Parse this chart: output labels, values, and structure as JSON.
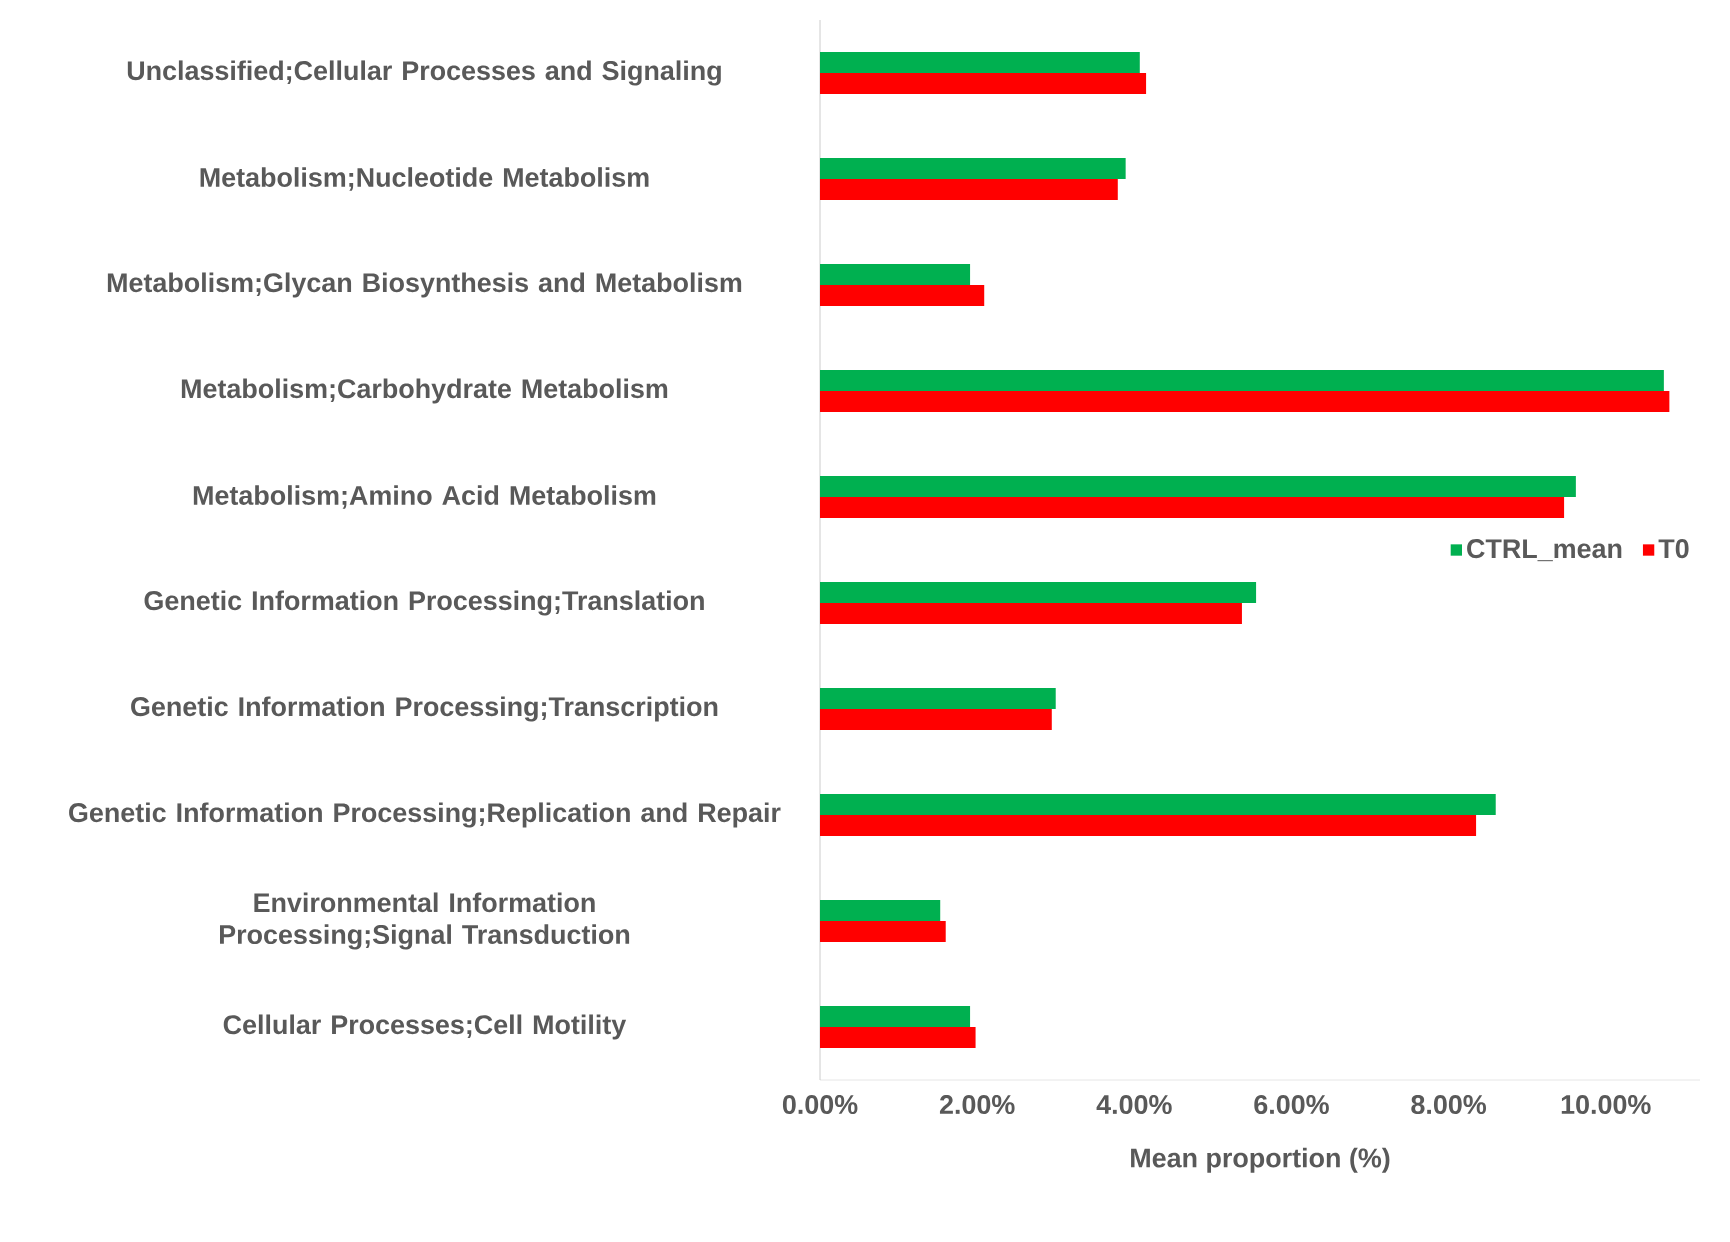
{
  "chart_data": {
    "type": "bar",
    "orientation": "horizontal",
    "xlabel": "Mean proportion (%)",
    "categories": [
      "Unclassified;Cellular Processes and Signaling",
      "Metabolism;Nucleotide Metabolism",
      "Metabolism;Glycan Biosynthesis and Metabolism",
      "Metabolism;Carbohydrate Metabolism",
      "Metabolism;Amino Acid Metabolism",
      "Genetic Information Processing;Translation",
      "Genetic Information Processing;Transcription",
      "Genetic Information Processing;Replication and Repair",
      "Environmental Information Processing;Signal Transduction",
      "Cellular Processes;Cell Motility"
    ],
    "series": [
      {
        "name": "CTRL_mean",
        "color": "#00b050",
        "values": [
          4.07,
          3.89,
          1.91,
          10.74,
          9.62,
          5.55,
          3.0,
          8.6,
          1.53,
          1.91
        ]
      },
      {
        "name": "T0",
        "color": "#ff0000",
        "values": [
          4.15,
          3.79,
          2.09,
          10.81,
          9.47,
          5.37,
          2.95,
          8.35,
          1.6,
          1.98
        ]
      }
    ],
    "xlim": [
      0,
      11.2
    ],
    "xticks": [
      {
        "value": 0,
        "label": "0.00%"
      },
      {
        "value": 2,
        "label": "2.00%"
      },
      {
        "value": 4,
        "label": "4.00%"
      },
      {
        "value": 6,
        "label": "6.00%"
      },
      {
        "value": 8,
        "label": "8.00%"
      },
      {
        "value": 10,
        "label": "10.00%"
      }
    ],
    "legend": "right"
  }
}
